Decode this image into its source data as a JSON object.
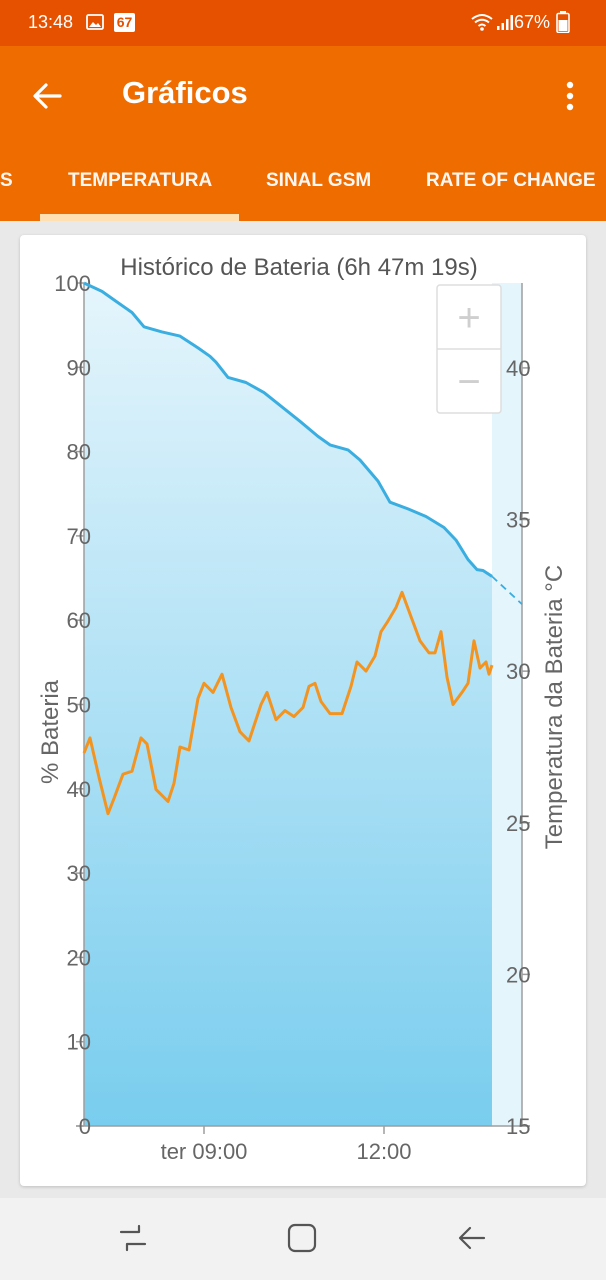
{
  "status_bar": {
    "time": "13:48",
    "notification_badge": "67",
    "battery": "67%",
    "icons": [
      "image-icon",
      "calendar-icon",
      "wifi-icon",
      "signal-icon",
      "battery-icon"
    ]
  },
  "app_bar": {
    "title": "Gráficos",
    "tabs": [
      {
        "label": "S"
      },
      {
        "label": "TEMPERATURA"
      },
      {
        "label": "SINAL GSM"
      },
      {
        "label": "RATE OF CHANGE"
      }
    ],
    "active_tab": 1
  },
  "colors": {
    "status_bar": "#e65100",
    "app_bar": "#ef6c00",
    "battery_line": "#3aaee0",
    "temperature_line": "#f39420",
    "area_top": "#e5f5fc",
    "area_bottom": "#79cdee"
  },
  "zoom": {
    "plus": "+",
    "minus": "−"
  },
  "chart_data": {
    "type": "line",
    "title": "Histórico de Bateria (6h 47m 19s)",
    "ylabel": "% Bateria",
    "y2label": "Temperatura da Bateria °C",
    "ylim": [
      0,
      100
    ],
    "y2lim": [
      15,
      42.8
    ],
    "yticks": [
      "0",
      "10",
      "20",
      "30",
      "40",
      "50",
      "60",
      "70",
      "80",
      "90",
      "100"
    ],
    "y2ticks": [
      "15",
      "20",
      "25",
      "30",
      "35",
      "40"
    ],
    "xlim": [
      7.0,
      14.3
    ],
    "xticks": [
      {
        "x": 9.0,
        "label": "ter 09:00"
      },
      {
        "x": 12.0,
        "label": "12:00"
      }
    ],
    "measured_until": 13.8,
    "series": [
      {
        "axis": "left",
        "fill": true,
        "points": [
          [
            7.0,
            100
          ],
          [
            7.3,
            99
          ],
          [
            7.5,
            98
          ],
          [
            7.8,
            96.5
          ],
          [
            8.0,
            94.8
          ],
          [
            8.3,
            94.2
          ],
          [
            8.6,
            93.7
          ],
          [
            8.9,
            92.3
          ],
          [
            9.1,
            91.3
          ],
          [
            9.2,
            90.6
          ],
          [
            9.4,
            88.8
          ],
          [
            9.7,
            88.2
          ],
          [
            10.0,
            87
          ],
          [
            10.3,
            85.3
          ],
          [
            10.6,
            83.6
          ],
          [
            10.9,
            81.8
          ],
          [
            11.1,
            80.8
          ],
          [
            11.4,
            80.2
          ],
          [
            11.6,
            79
          ],
          [
            11.9,
            76.5
          ],
          [
            12.1,
            74
          ],
          [
            12.4,
            73.2
          ],
          [
            12.7,
            72.3
          ],
          [
            13.0,
            71
          ],
          [
            13.2,
            69.5
          ],
          [
            13.4,
            67.2
          ],
          [
            13.55,
            66
          ],
          [
            13.65,
            65.9
          ],
          [
            13.8,
            65.2
          ]
        ]
      },
      {
        "axis": "left",
        "projected": true,
        "points": [
          [
            13.8,
            65.2
          ],
          [
            14.3,
            61.9
          ]
        ]
      },
      {
        "axis": "right",
        "points": [
          [
            7.0,
            27.3
          ],
          [
            7.1,
            27.8
          ],
          [
            7.25,
            26.5
          ],
          [
            7.4,
            25.3
          ],
          [
            7.5,
            25.8
          ],
          [
            7.65,
            26.6
          ],
          [
            7.8,
            26.7
          ],
          [
            7.95,
            27.8
          ],
          [
            8.05,
            27.6
          ],
          [
            8.2,
            26.1
          ],
          [
            8.4,
            25.7
          ],
          [
            8.5,
            26.3
          ],
          [
            8.6,
            27.5
          ],
          [
            8.75,
            27.4
          ],
          [
            8.9,
            29.1
          ],
          [
            9.0,
            29.6
          ],
          [
            9.15,
            29.3
          ],
          [
            9.3,
            29.9
          ],
          [
            9.45,
            28.8
          ],
          [
            9.6,
            28.0
          ],
          [
            9.75,
            27.7
          ],
          [
            9.95,
            28.9
          ],
          [
            10.05,
            29.3
          ],
          [
            10.2,
            28.4
          ],
          [
            10.35,
            28.7
          ],
          [
            10.5,
            28.5
          ],
          [
            10.65,
            28.8
          ],
          [
            10.75,
            29.5
          ],
          [
            10.85,
            29.6
          ],
          [
            10.95,
            29.0
          ],
          [
            11.1,
            28.6
          ],
          [
            11.3,
            28.6
          ],
          [
            11.45,
            29.5
          ],
          [
            11.55,
            30.3
          ],
          [
            11.7,
            30.0
          ],
          [
            11.85,
            30.5
          ],
          [
            11.95,
            31.3
          ],
          [
            12.05,
            31.6
          ],
          [
            12.2,
            32.1
          ],
          [
            12.3,
            32.6
          ],
          [
            12.45,
            31.8
          ],
          [
            12.6,
            31.0
          ],
          [
            12.75,
            30.6
          ],
          [
            12.85,
            30.6
          ],
          [
            12.95,
            31.3
          ],
          [
            13.05,
            29.8
          ],
          [
            13.15,
            28.9
          ],
          [
            13.3,
            29.3
          ],
          [
            13.4,
            29.6
          ],
          [
            13.5,
            31.0
          ],
          [
            13.6,
            30.1
          ],
          [
            13.7,
            30.3
          ],
          [
            13.75,
            29.9
          ],
          [
            13.8,
            30.2
          ]
        ]
      }
    ],
    "grid": false
  },
  "nav_bar": {
    "buttons": [
      "recents-icon",
      "home-icon",
      "back-nav-icon"
    ]
  }
}
